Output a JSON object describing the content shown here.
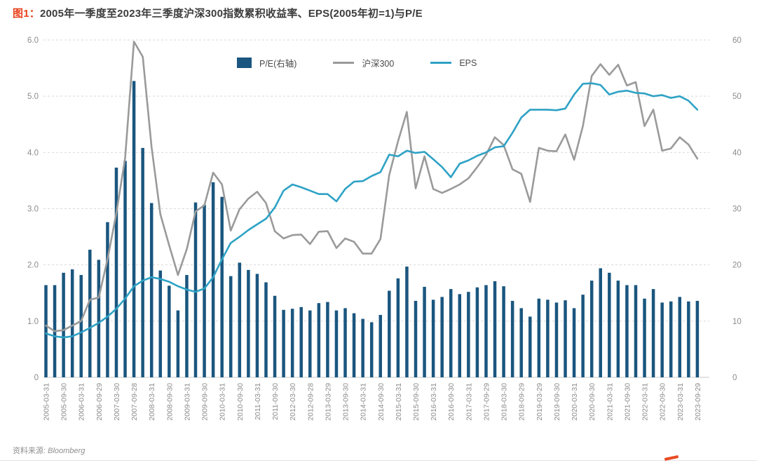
{
  "title": {
    "prefix": "图1：",
    "text": "2005年一季度至2023年三季度沪深300指数累积收益率、EPS(2005年初=1)与P/E"
  },
  "source": {
    "prefix": "资料来源: ",
    "name": "Bloomberg"
  },
  "colors": {
    "bar": "#1a567f",
    "hs300": "#9a9a9a",
    "eps": "#2ea2c5",
    "grid": "#d9d9d9",
    "baseline": "#c9c9c9",
    "axis_text": "#8c8c8c",
    "title_prefix": "#e8421c",
    "footer_mark": "#e84b23"
  },
  "chart_data": {
    "type": "combo-bar-line",
    "grid": true,
    "legend_position": "top-center",
    "left_axis": {
      "range": [
        0,
        6
      ],
      "ticks": [
        {
          "label": "6.0",
          "value": 6
        },
        {
          "label": "5.0",
          "value": 5
        },
        {
          "label": "4.0",
          "value": 4
        },
        {
          "label": "3.0",
          "value": 3
        },
        {
          "label": "2.0",
          "value": 2
        },
        {
          "label": "1.0",
          "value": 1
        },
        {
          "label": "0",
          "value": 0
        }
      ]
    },
    "right_axis": {
      "range": [
        0,
        60
      ],
      "ticks": [
        {
          "label": "60",
          "value": 60
        },
        {
          "label": "50",
          "value": 50
        },
        {
          "label": "40",
          "value": 40
        },
        {
          "label": "30",
          "value": 30
        },
        {
          "label": "20",
          "value": 20
        },
        {
          "label": "10",
          "value": 10
        },
        {
          "label": "0",
          "value": 0
        }
      ]
    },
    "x_tick_every": 2,
    "x_tick_labels": [
      "2005-03-31",
      "2005-09-30",
      "2006-03-31",
      "2006-09-29",
      "2007-03-30",
      "2007-09-28",
      "2008-03-31",
      "2008-09-30",
      "2009-03-31",
      "2009-09-30",
      "2010-03-31",
      "2010-09-30",
      "2011-03-31",
      "2011-09-30",
      "2012-03-30",
      "2012-09-28",
      "2013-03-29",
      "2013-09-30",
      "2014-03-31",
      "2014-09-30",
      "2015-03-31",
      "2015-09-30",
      "2016-03-31",
      "2016-09-30",
      "2017-03-31",
      "2017-09-29",
      "2018-03-30",
      "2018-09-29",
      "2019-03-29",
      "2019-09-30",
      "2020-03-31",
      "2020-09-30",
      "2021-03-31",
      "2021-09-30",
      "2022-03-31",
      "2022-09-30",
      "2023-03-31",
      "2023-09-29"
    ],
    "series": [
      {
        "name": "P/E(右轴)",
        "type": "bar",
        "axis": "right",
        "color": "#1a567f",
        "values": [
          16.4,
          16.4,
          18.6,
          19.2,
          18.2,
          22.7,
          20.9,
          27.6,
          37.3,
          38.5,
          52.7,
          40.8,
          31.0,
          19.0,
          16.3,
          11.9,
          18.2,
          31.1,
          30.7,
          34.7,
          32.1,
          18.0,
          20.4,
          19.1,
          18.4,
          16.9,
          14.5,
          12.0,
          12.2,
          12.5,
          11.9,
          13.2,
          13.4,
          11.9,
          12.3,
          11.4,
          10.4,
          9.8,
          11.1,
          15.4,
          17.6,
          19.7,
          13.6,
          16.1,
          13.8,
          14.3,
          15.7,
          14.8,
          15.2,
          16.0,
          16.4,
          17.1,
          16.2,
          13.6,
          12.3,
          10.8,
          14.0,
          13.8,
          13.3,
          13.7,
          12.3,
          14.7,
          17.2,
          19.4,
          18.6,
          17.2,
          16.4,
          16.4,
          14.0,
          15.7,
          13.3,
          13.5,
          14.3,
          13.5,
          13.6
        ]
      },
      {
        "name": "沪深300",
        "type": "line",
        "axis": "left",
        "color": "#9a9a9a",
        "values": [
          0.92,
          0.82,
          0.84,
          0.92,
          1.0,
          1.38,
          1.42,
          2.1,
          2.92,
          3.9,
          5.97,
          5.7,
          4.1,
          2.9,
          2.35,
          1.82,
          2.28,
          2.95,
          3.06,
          3.64,
          3.43,
          2.61,
          2.99,
          3.18,
          3.3,
          3.1,
          2.6,
          2.47,
          2.53,
          2.54,
          2.37,
          2.59,
          2.6,
          2.3,
          2.47,
          2.41,
          2.2,
          2.2,
          2.46,
          3.6,
          4.2,
          4.72,
          3.36,
          3.93,
          3.35,
          3.28,
          3.35,
          3.43,
          3.54,
          3.74,
          3.96,
          4.27,
          4.13,
          3.7,
          3.62,
          3.12,
          4.08,
          4.03,
          4.02,
          4.32,
          3.87,
          4.47,
          5.36,
          5.57,
          5.38,
          5.56,
          5.19,
          5.25,
          4.47,
          4.76,
          4.03,
          4.07,
          4.27,
          4.14,
          3.89
        ]
      },
      {
        "name": "EPS",
        "type": "line",
        "axis": "left",
        "color": "#2ea2c5",
        "values": [
          0.78,
          0.73,
          0.71,
          0.73,
          0.8,
          0.88,
          0.97,
          1.08,
          1.22,
          1.4,
          1.62,
          1.72,
          1.78,
          1.75,
          1.7,
          1.62,
          1.56,
          1.52,
          1.58,
          1.78,
          2.1,
          2.39,
          2.5,
          2.62,
          2.72,
          2.82,
          3.02,
          3.32,
          3.43,
          3.38,
          3.32,
          3.26,
          3.26,
          3.13,
          3.35,
          3.48,
          3.49,
          3.58,
          3.65,
          3.96,
          3.93,
          4.03,
          3.99,
          4.01,
          3.88,
          3.74,
          3.56,
          3.8,
          3.86,
          3.94,
          4.0,
          4.09,
          4.11,
          4.35,
          4.62,
          4.76,
          4.76,
          4.76,
          4.75,
          4.78,
          5.03,
          5.22,
          5.23,
          5.2,
          5.03,
          5.08,
          5.1,
          5.06,
          5.05,
          5.0,
          5.02,
          4.97,
          5.0,
          4.92,
          4.76
        ]
      }
    ]
  }
}
